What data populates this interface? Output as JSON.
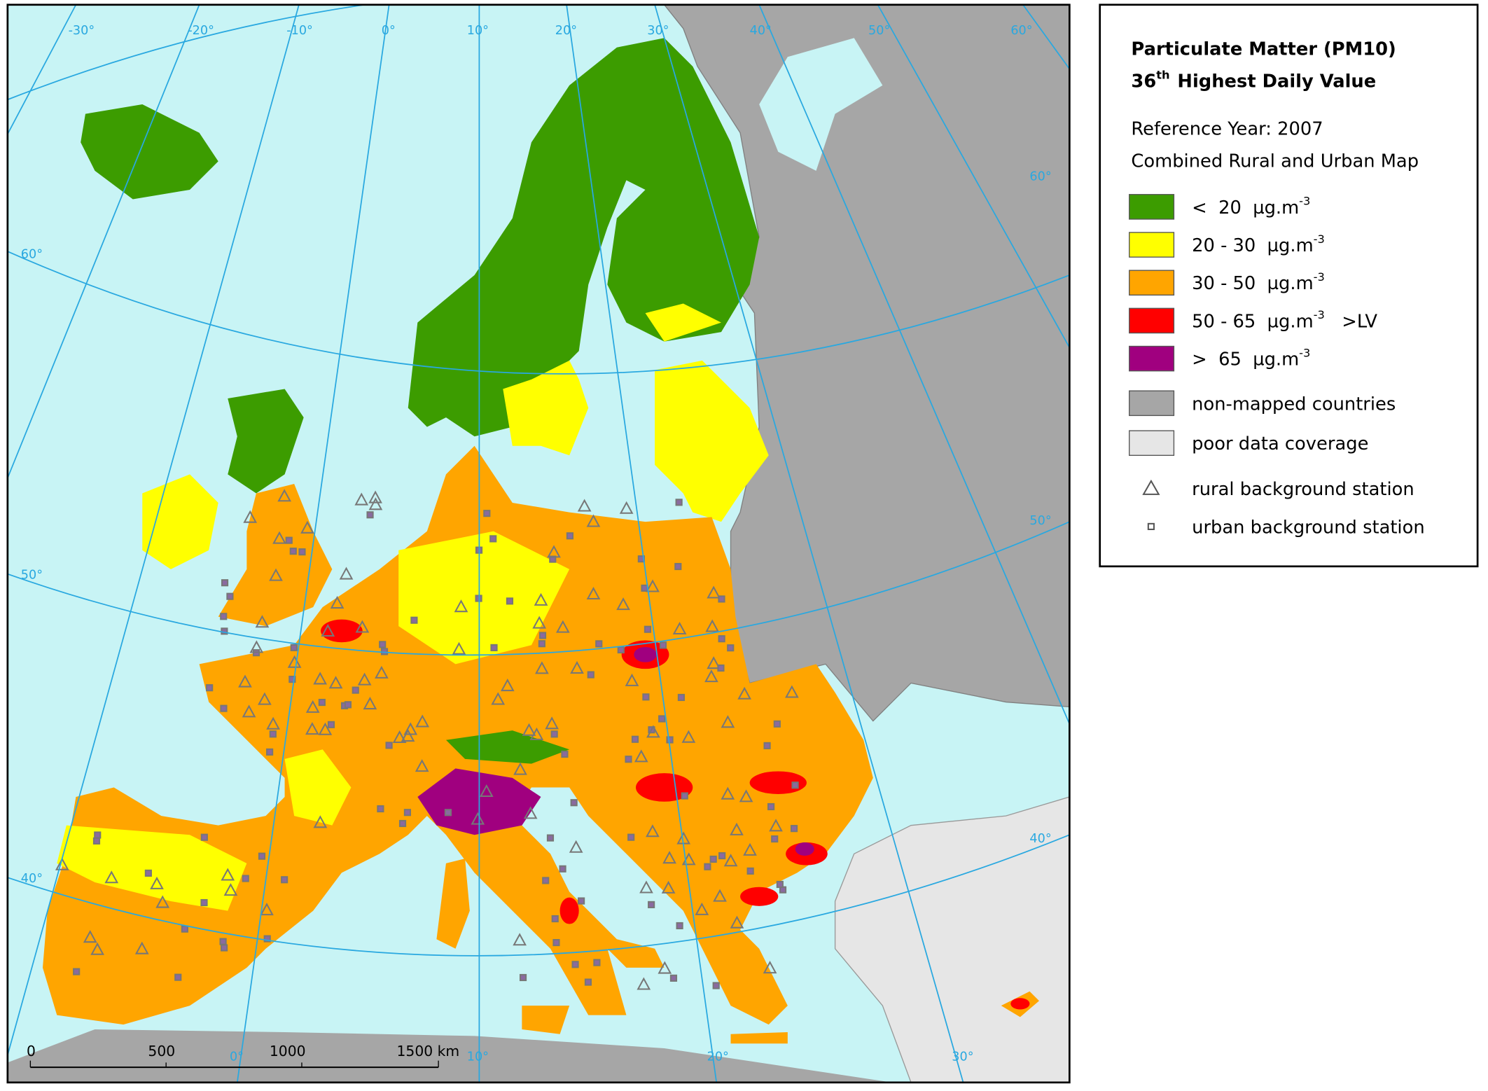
{
  "legend": {
    "title": "Particulate Matter (PM10)",
    "subtitle_number": "36",
    "subtitle_sup": "th",
    "subtitle_text": "Highest Daily Value",
    "reference_year": "Reference Year: 2007",
    "map_type": "Combined Rural and Urban Map",
    "items": [
      {
        "color": "#3c9c00",
        "label": "<  20  µg.m",
        "sup": "-3"
      },
      {
        "color": "#ffff00",
        "label": "20 - 30  µg.m",
        "sup": "-3"
      },
      {
        "color": "#ffa500",
        "label": "30 - 50  µg.m",
        "sup": "-3"
      },
      {
        "color": "#ff0000",
        "label": "50 - 65  µg.m",
        "sup": "-3",
        "note": ">LV"
      },
      {
        "color": "#a0007f",
        "label": ">  65  µg.m",
        "sup": "-3"
      },
      {
        "color": "#a6a6a6",
        "label": "non-mapped countries"
      },
      {
        "color": "#e6e6e6",
        "label": "poor data coverage"
      }
    ],
    "stations": [
      {
        "symbol": "triangle",
        "label": "rural background station"
      },
      {
        "symbol": "square",
        "label": "urban background station"
      }
    ]
  },
  "graticule": {
    "top_labels": [
      "-30°",
      "-20°",
      "-10°",
      "0°",
      "10°",
      "20°",
      "30°",
      "40°",
      "50°",
      "60°"
    ],
    "left_labels": [
      "60°",
      "50°",
      "40°"
    ],
    "right_labels": [
      "60°",
      "50°",
      "40°"
    ],
    "bottom_labels": [
      "0°",
      "10°",
      "20°",
      "30°"
    ]
  },
  "scale_bar": {
    "labels": [
      "0",
      "500",
      "1000",
      "1500 km"
    ]
  }
}
